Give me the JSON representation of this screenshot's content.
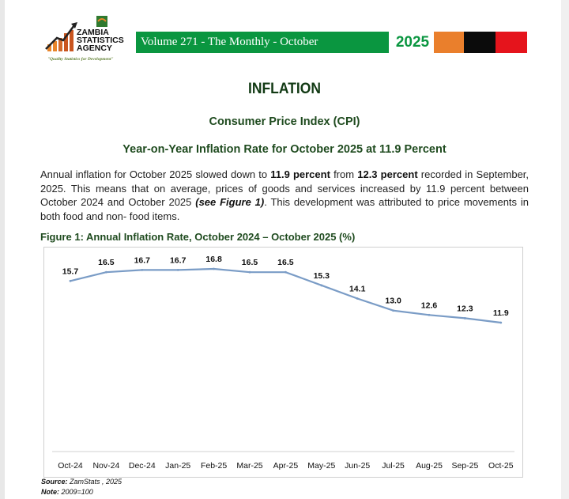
{
  "header": {
    "logo_lines": [
      "ZAMBIA",
      "STATISTICS",
      "AGENCY"
    ],
    "tagline": "\"Quality Statistics for Development\"",
    "banner": "Volume 271 - The Monthly - October",
    "year": "2025",
    "colors": {
      "banner_green": "#0a9640",
      "orange": "#ea7f2c",
      "black": "#0b0b0b",
      "red": "#e5141c"
    }
  },
  "section_title": "INFLATION",
  "subtitle": "Consumer Price Index (CPI)",
  "headline": "Year-on-Year Inflation Rate for October 2025  at 11.9 Percent",
  "paragraph": {
    "p1": "Annual inflation for October 2025 slowed down to ",
    "b1": "11.9 percent",
    "p2": " from ",
    "b2": "12.3 percent",
    "p3": " recorded in September, 2025. This means that on average, prices of goods and services increased by 11.9 percent between October 2024 and October 2025 ",
    "b3": "(see Figure 1)",
    "p4": ". This development was attributed to price movements in both food and non- food items."
  },
  "figure_title": "Figure 1: Annual Inflation Rate, October 2024 – October 2025 (%)",
  "chart_data": {
    "type": "line",
    "categories": [
      "Oct-24",
      "Nov-24",
      "Dec-24",
      "Jan-25",
      "Feb-25",
      "Mar-25",
      "Apr-25",
      "May-25",
      "Jun-25",
      "Jul-25",
      "Aug-25",
      "Sep-25",
      "Oct-25"
    ],
    "values": [
      15.7,
      16.5,
      16.7,
      16.7,
      16.8,
      16.5,
      16.5,
      15.3,
      14.1,
      13.0,
      12.6,
      12.3,
      11.9
    ],
    "data_labels": [
      "15.7",
      "16.5",
      "16.7",
      "16.7",
      "16.8",
      "16.5",
      "16.5",
      "15.3",
      "14.1",
      "13.0",
      "12.6",
      "12.3",
      "11.9"
    ],
    "line_color": "#7a9cc6",
    "grid": false,
    "legend": "none"
  },
  "source_label": "Source:",
  "source_text": " ZamStats , 2025",
  "note_label": "Note:",
  "note_text": " 2009=100"
}
